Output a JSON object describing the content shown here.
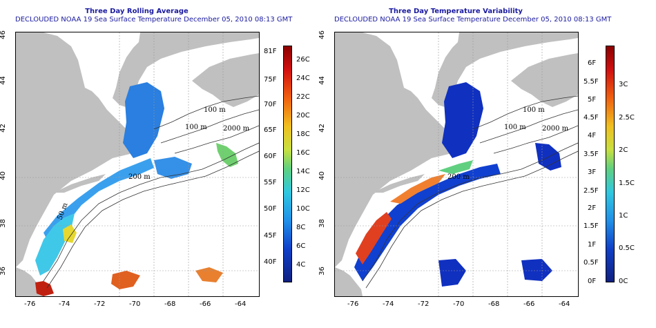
{
  "panels": [
    {
      "title_line1": "Three Day Rolling Average",
      "title_line2": "DECLOUDED NOAA 19 Sea Surface Temperature December 05, 2010 08:13 GMT",
      "colorbar_left_labels": [
        "81F",
        "75F",
        "70F",
        "65F",
        "60F",
        "55F",
        "50F",
        "45F",
        "40F"
      ],
      "colorbar_right_labels": [
        "26C",
        "24C",
        "22C",
        "20C",
        "18C",
        "16C",
        "14C",
        "12C",
        "10C",
        "8C",
        "6C",
        "4C"
      ]
    },
    {
      "title_line1": "Three Day Temperature Variability",
      "title_line2": "DECLOUDED NOAA 19 Sea Surface Temperature December 05, 2010 08:13 GMT",
      "colorbar_left_labels": [
        "6F",
        "5.5F",
        "5F",
        "4.5F",
        "4F",
        "3.5F",
        "3F",
        "2.5F",
        "2F",
        "1.5F",
        "1F",
        "0.5F",
        "0F"
      ],
      "colorbar_right_labels": [
        "3C",
        "2.5C",
        "2C",
        "1.5C",
        "1C",
        "0.5C",
        "0C"
      ]
    }
  ],
  "x_ticks": [
    "-76",
    "-74",
    "-72",
    "-70",
    "-68",
    "-66",
    "-64"
  ],
  "y_ticks": [
    "46",
    "44",
    "42",
    "40",
    "38",
    "36"
  ],
  "contour_labels": [
    "100 m",
    "2000 m",
    "100 m",
    "200 m",
    "50 m"
  ],
  "colors": {
    "land": "#c0c0c0",
    "title": "#1a1aa0",
    "contour": "#333333",
    "grid": "#999999"
  }
}
